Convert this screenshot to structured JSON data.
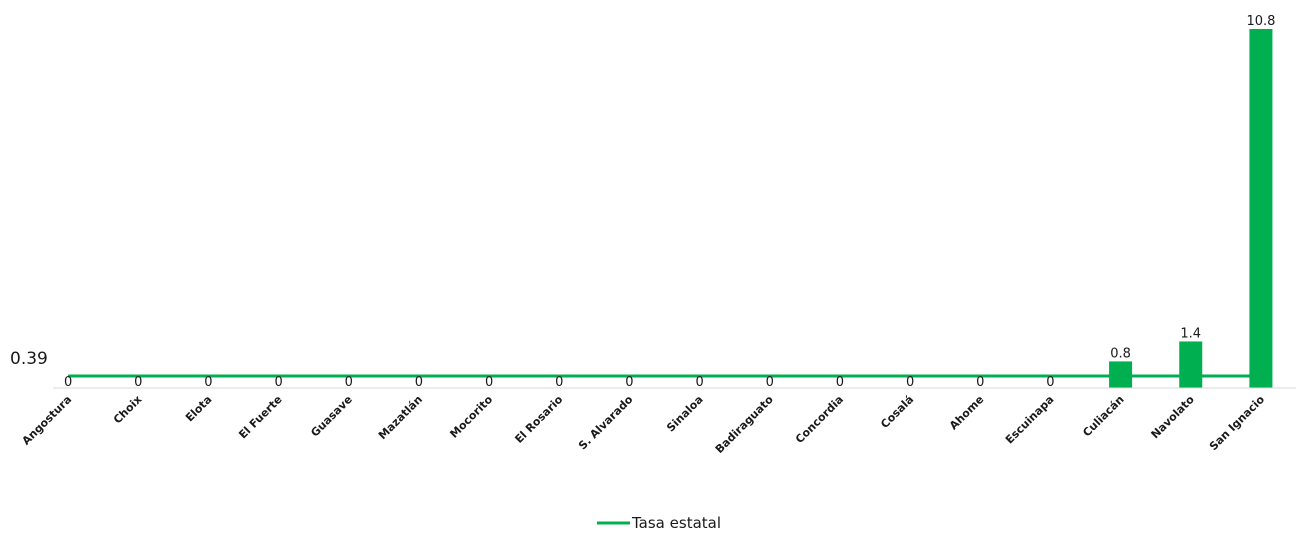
{
  "chart_data": {
    "type": "bar",
    "title": "",
    "xlabel": "",
    "ylabel": "",
    "categories": [
      "Angostura",
      "Choix",
      "Elota",
      "El Fuerte",
      "Guasave",
      "Mazatlán",
      "Mocorito",
      "El Rosario",
      "S. Alvarado",
      "Sinaloa",
      "Badiraguato",
      "Concordia",
      "Cosalá",
      "Ahome",
      "Escuinapa",
      "Culiacán",
      "Navolato",
      "San Ignacio"
    ],
    "values": [
      0,
      0,
      0,
      0,
      0,
      0,
      0,
      0,
      0,
      0,
      0,
      0,
      0,
      0,
      0,
      0.8,
      1.4,
      10.8
    ],
    "data_labels": [
      "0",
      "0",
      "0",
      "0",
      "0",
      "0",
      "0",
      "0",
      "0",
      "0",
      "0",
      "0",
      "0",
      "0",
      "0",
      "0.8",
      "1.4",
      "10.8"
    ],
    "ylim": [
      0,
      10.8
    ],
    "grid": false,
    "bar_color": "#00b050",
    "reference_line": {
      "name": "Tasa estatal",
      "value": 0.39,
      "label": "0.39",
      "color": "#00b050"
    },
    "legend": {
      "position": "bottom",
      "entries": [
        "Tasa estatal"
      ]
    }
  }
}
